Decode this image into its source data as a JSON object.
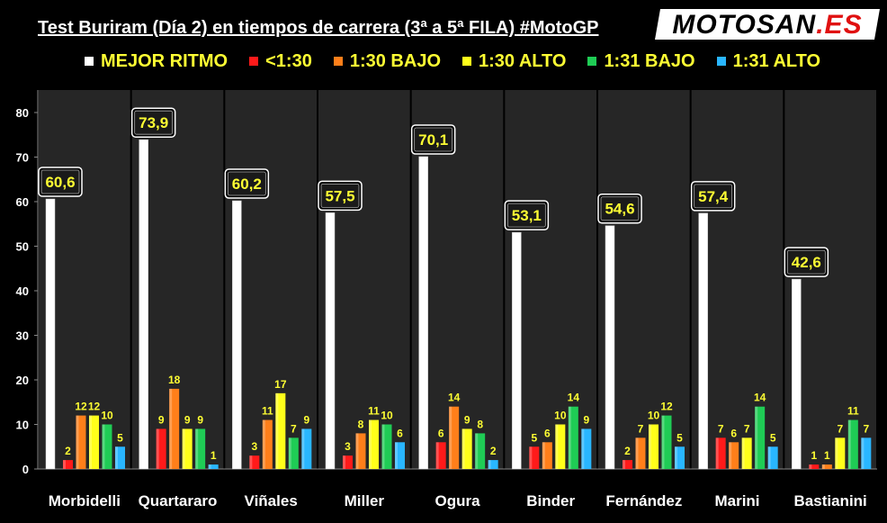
{
  "header": {
    "title": "Test Buriram (Día 2) en tiempos de carrera (3ª a 5ª FILA) #MotoGP",
    "logo_text": "MOTOSAN.ES"
  },
  "colors": {
    "background": "#000000",
    "panel": "#262626",
    "label_text": "#ffff33",
    "label_box": "#1a1a1a"
  },
  "chart_data": {
    "type": "bar",
    "title": "Test Buriram (Día 2) en tiempos de carrera (3ª a 5ª FILA) #MotoGP",
    "xlabel": "",
    "ylabel": "",
    "ylim": [
      0,
      80
    ],
    "yticks": [
      0,
      10,
      20,
      30,
      40,
      50,
      60,
      70,
      80
    ],
    "grid": false,
    "legend_position": "top",
    "categories": [
      "Morbidelli",
      "Quartararo",
      "Viñales",
      "Miller",
      "Ogura",
      "Binder",
      "Fernández",
      "Marini",
      "Bastianini"
    ],
    "series": [
      {
        "name": "MEJOR RITMO",
        "color": "#ffffff",
        "values": [
          60.6,
          73.9,
          60.2,
          57.5,
          70.1,
          53.1,
          54.6,
          57.4,
          42.6
        ],
        "labels": [
          "60,6",
          "73,9",
          "60,2",
          "57,5",
          "70,1",
          "53,1",
          "54,6",
          "57,4",
          "42,6"
        ]
      },
      {
        "name": "<1:30",
        "color": "#ff1a1a",
        "values": [
          2,
          9,
          3,
          3,
          6,
          5,
          2,
          7,
          1
        ],
        "labels": [
          "2",
          "9",
          "3",
          "3",
          "6",
          "5",
          "2",
          "7",
          "1"
        ]
      },
      {
        "name": "1:30 BAJO",
        "color": "#ff7f1a",
        "values": [
          12,
          18,
          11,
          8,
          14,
          6,
          7,
          6,
          1
        ],
        "labels": [
          "12",
          "18",
          "11",
          "8",
          "14",
          "6",
          "7",
          "6",
          "1"
        ]
      },
      {
        "name": "1:30 ALTO",
        "color": "#ffff1a",
        "values": [
          12,
          9,
          17,
          11,
          9,
          10,
          10,
          7,
          7
        ],
        "labels": [
          "12",
          "9",
          "17",
          "11",
          "9",
          "10",
          "10",
          "7",
          "7"
        ]
      },
      {
        "name": "1:31 BAJO",
        "color": "#1fcc55",
        "values": [
          10,
          9,
          7,
          10,
          8,
          14,
          12,
          14,
          11
        ],
        "labels": [
          "10",
          "9",
          "7",
          "10",
          "8",
          "14",
          "12",
          "14",
          "11"
        ]
      },
      {
        "name": "1:31 ALTO",
        "color": "#29b6ff",
        "values": [
          5,
          1,
          9,
          6,
          2,
          9,
          5,
          5,
          7
        ],
        "labels": [
          "5",
          "1",
          "9",
          "6",
          "2",
          "9",
          "5",
          "5",
          "7"
        ]
      }
    ]
  }
}
